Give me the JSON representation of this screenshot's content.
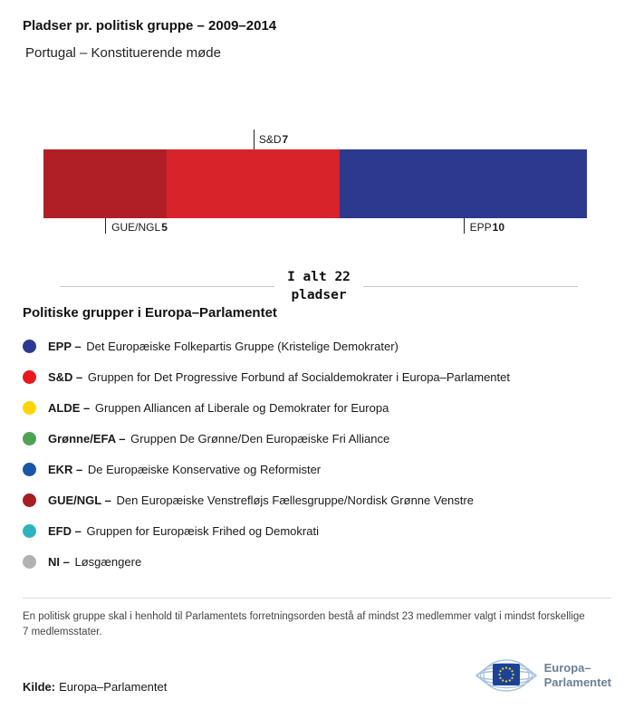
{
  "header": {
    "title": "Pladser pr. politisk gruppe – 2009–2014",
    "subtitle": "Portugal – Konstituerende møde"
  },
  "chart_data": {
    "type": "bar",
    "subtype": "horizontal-stacked",
    "title": "Pladser pr. politisk gruppe – 2009–2014",
    "subtitle": "Portugal – Konstituerende møde",
    "total": 22,
    "total_label": "I alt 22 pladser",
    "categories": [
      "GUE/NGL",
      "S&D",
      "EPP"
    ],
    "values": [
      5,
      7,
      10
    ],
    "segments": [
      {
        "name": "GUE/NGL",
        "value": 5,
        "color": "#b01f26",
        "label_side": "below"
      },
      {
        "name": "S&D",
        "value": 7,
        "color": "#d8232a",
        "label_side": "above"
      },
      {
        "name": "EPP",
        "value": 10,
        "color": "#2b3a8f",
        "label_side": "below"
      }
    ]
  },
  "total_block": {
    "line1": "I alt 22",
    "line2": "pladser"
  },
  "legend": {
    "heading": "Politiske grupper i Europa–Parlamentet",
    "items": [
      {
        "abbr": "EPP –",
        "desc": "Det Europæiske Folkepartis Gruppe (Kristelige Demokrater)",
        "color": "#2b3a8f"
      },
      {
        "abbr": "S&D –",
        "desc": "Gruppen for Det Progressive Forbund af Socialdemokrater i Europa–Parlamentet",
        "color": "#e8181f"
      },
      {
        "abbr": "ALDE –",
        "desc": "Gruppen Alliancen af Liberale og Demokrater for Europa",
        "color": "#ffd500"
      },
      {
        "abbr": "Grønne/EFA –",
        "desc": "Gruppen De Grønne/Den Europæiske Fri Alliance",
        "color": "#4ca353"
      },
      {
        "abbr": "EKR –",
        "desc": "De Europæiske Konservative og Reformister",
        "color": "#1957a6"
      },
      {
        "abbr": "GUE/NGL –",
        "desc": "Den Europæiske Venstrefløjs Fællesgruppe/Nordisk Grønne Venstre",
        "color": "#a81d22"
      },
      {
        "abbr": "EFD –",
        "desc": "Gruppen for Europæisk Frihed og Demokrati",
        "color": "#2db3bf"
      },
      {
        "abbr": "NI –",
        "desc": "Løsgængere",
        "color": "#b2b2b2"
      }
    ]
  },
  "footnote": "En politisk gruppe skal i henhold til Parlamentets forretningsorden bestå af mindst 23 medlemmer valgt i mindst forskellige 7 medlemsstater.",
  "source": {
    "label": "Kilde:",
    "value": "Europa–Parlamentet"
  },
  "logo": {
    "line1": "Europa–",
    "line2": "Parlamentet"
  }
}
